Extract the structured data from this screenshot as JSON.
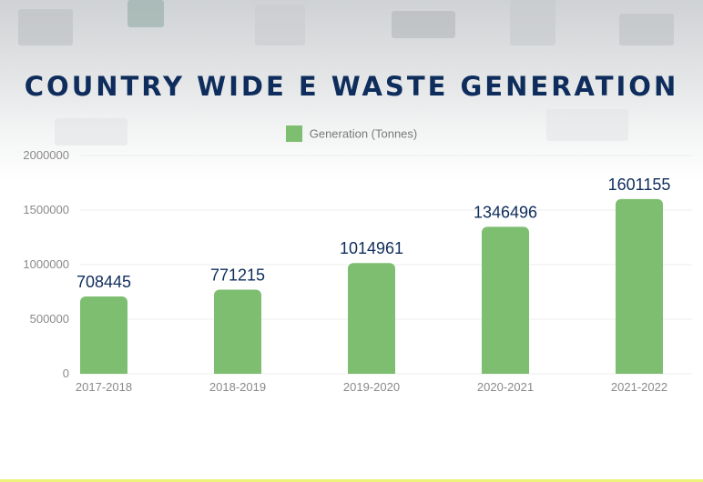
{
  "colors": {
    "bar": "#7dbe70",
    "title": "#0f2d5c",
    "axis_text": "#8a8a8a",
    "grid": "#ececec"
  },
  "chart_data": {
    "type": "bar",
    "title": "COUNTRY WIDE E WASTE GENERATION",
    "categories": [
      "2017-2018",
      "2018-2019",
      "2019-2020",
      "2020-2021",
      "2021-2022"
    ],
    "series": [
      {
        "name": "Generation (Tonnes)",
        "values": [
          708445,
          771215,
          1014961,
          1346496,
          1601155
        ]
      }
    ],
    "data_labels": [
      "708445",
      "771215",
      "1014961",
      "1346496",
      "1601155"
    ],
    "yticks": [
      0,
      500000,
      1000000,
      1500000,
      2000000
    ],
    "ylim": [
      0,
      2000000
    ],
    "xlabel": "",
    "ylabel": "",
    "legend": "top-center",
    "grid": true
  }
}
